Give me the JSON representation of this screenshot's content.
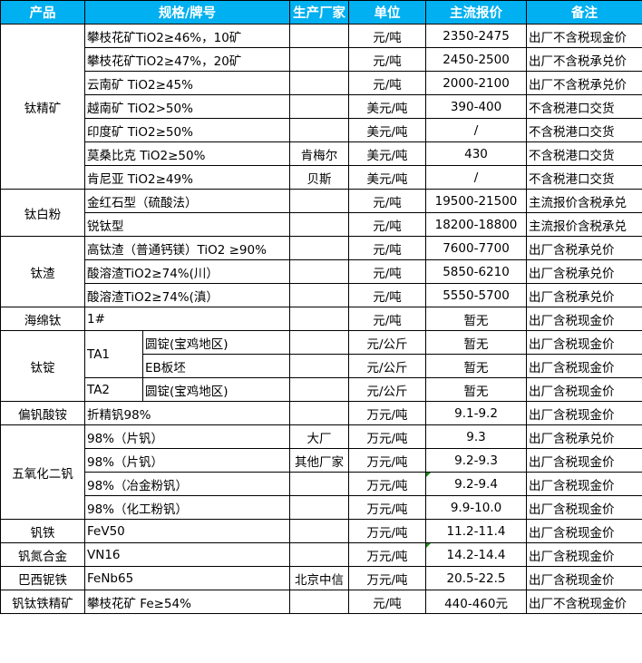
{
  "header_color": "#00b0f0",
  "headers": [
    "产品",
    "规格/牌号",
    "生产厂家",
    "单位",
    "主流报价",
    "备注"
  ],
  "groups": [
    {
      "product": "钛精矿",
      "rows": [
        {
          "spec": "攀枝花矿TiO2≥46%，10矿",
          "maker": "",
          "unit": "元/吨",
          "price": "2350-2475",
          "note": "出厂不含税现金价"
        },
        {
          "spec": "攀枝花矿TiO2≥47%，20矿",
          "maker": "",
          "unit": "元/吨",
          "price": "2450-2500",
          "note": "出厂不含税承兑价"
        },
        {
          "spec": "云南矿 TiO2≥45%",
          "maker": "",
          "unit": "元/吨",
          "price": "2000-2100",
          "note": "出厂不含税承兑价"
        },
        {
          "spec": "越南矿 TiO2>50%",
          "maker": "",
          "unit": "美元/吨",
          "price": "390-400",
          "note": "不含税港口交货"
        },
        {
          "spec": "印度矿 TiO2≥50%",
          "maker": "",
          "unit": "美元/吨",
          "price": "/",
          "note": "不含税港口交货"
        },
        {
          "spec": "莫桑比克 TiO2≥50%",
          "maker": "肯梅尔",
          "unit": "美元/吨",
          "price": "430",
          "note": "不含税港口交货"
        },
        {
          "spec": "肯尼亚 TiO2≥49%",
          "maker": "贝斯",
          "unit": "美元/吨",
          "price": "/",
          "note": "不含税港口交货"
        }
      ]
    },
    {
      "product": "钛白粉",
      "rows": [
        {
          "spec": "金红石型（硫酸法）",
          "maker": "",
          "unit": "元/吨",
          "price": "19500-21500",
          "note": "主流报价含税承兑"
        },
        {
          "spec": "锐钛型",
          "maker": "",
          "unit": "元/吨",
          "price": "18200-18800",
          "note": "主流报价含税承兑"
        }
      ]
    },
    {
      "product": "钛渣",
      "rows": [
        {
          "spec": "高钛渣（普通钙镁）TiO2 ≥90%",
          "maker": "",
          "unit": "元/吨",
          "price": "7600-7700",
          "note": "出厂含税承兑价"
        },
        {
          "spec": "酸溶渣TiO2≥74%(川）",
          "maker": "",
          "unit": "元/吨",
          "price": "5850-6210",
          "note": "出厂含税承兑价"
        },
        {
          "spec": "酸溶渣TiO2≥74%(滇）",
          "maker": "",
          "unit": "元/吨",
          "price": "5550-5700",
          "note": "出厂含税承兑价"
        }
      ]
    },
    {
      "product": "海绵钛",
      "rows": [
        {
          "spec": "1#",
          "maker": "",
          "unit": "元/吨",
          "price": "暂无",
          "note": "出厂含税现金价"
        }
      ]
    },
    {
      "product": "钛锭",
      "rows": [
        {
          "grade": "TA1",
          "grade_span": 2,
          "spec": "圆锭(宝鸡地区)",
          "maker": "",
          "unit": "元/公斤",
          "price": "暂无",
          "note": "出厂含税现金价"
        },
        {
          "spec": "EB板坯",
          "maker": "",
          "unit": "元/公斤",
          "price": "暂无",
          "note": "出厂含税现金价"
        },
        {
          "grade": "TA2",
          "grade_span": 1,
          "spec": "圆锭(宝鸡地区)",
          "maker": "",
          "unit": "元/公斤",
          "price": "暂无",
          "note": "出厂含税现金价"
        }
      ]
    },
    {
      "product": "偏钒酸铵",
      "rows": [
        {
          "spec": "折精钒98%",
          "maker": "",
          "unit": "万元/吨",
          "price": "9.1-9.2",
          "note": "出厂含税现金价"
        }
      ]
    },
    {
      "product": "五氧化二钒",
      "rows": [
        {
          "spec": "98%（片钒）",
          "maker": "大厂",
          "unit": "万元/吨",
          "price": "9.3",
          "note": "出厂含税承兑价"
        },
        {
          "spec": "98%（片钒）",
          "maker": "其他厂家",
          "unit": "万元/吨",
          "price": "9.2-9.3",
          "note": "出厂含税现金价"
        },
        {
          "spec": "98%（冶金粉钒）",
          "maker": "",
          "unit": "万元/吨",
          "price": "9.2-9.4",
          "note": "出厂含税现金价",
          "error_indicator": true
        },
        {
          "spec": "98%（化工粉钒）",
          "maker": "",
          "unit": "万元/吨",
          "price": "9.9-10.0",
          "note": "出厂含税现金价"
        }
      ]
    },
    {
      "product": "钒铁",
      "rows": [
        {
          "spec": "FeV50",
          "maker": "",
          "unit": "万元/吨",
          "price": "11.2-11.4",
          "note": "出厂含税现金价"
        }
      ]
    },
    {
      "product": "钒氮合金",
      "rows": [
        {
          "spec": "VN16",
          "maker": "",
          "unit": "万元/吨",
          "price": "14.2-14.4",
          "note": "出厂含税现金价",
          "error_indicator": true
        }
      ]
    },
    {
      "product": "巴西铌铁",
      "rows": [
        {
          "spec": "FeNb65",
          "maker": "北京中信",
          "unit": "万元/吨",
          "price": "20.5-22.5",
          "note": "出厂含税现金价"
        }
      ]
    },
    {
      "product": "钒钛铁精矿",
      "rows": [
        {
          "spec": "攀枝花矿 Fe≥54%",
          "maker": "",
          "unit": "元/吨",
          "price": "440-460元",
          "note": "出厂不含税现金价"
        }
      ]
    }
  ]
}
